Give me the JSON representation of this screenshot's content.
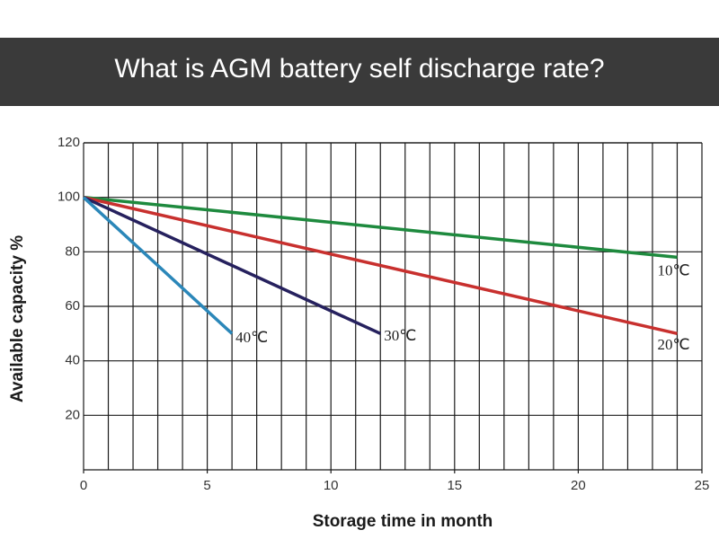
{
  "chart_data": {
    "type": "line",
    "title": "What is AGM battery self discharge rate?",
    "xlabel": "Storage time in month",
    "ylabel": "Available capacity %",
    "xlim": [
      0,
      25
    ],
    "xticks": [
      0,
      5,
      10,
      15,
      20,
      25
    ],
    "ylim": [
      0,
      120
    ],
    "yticks": [
      20,
      40,
      60,
      80,
      100,
      120
    ],
    "grid": true,
    "series": [
      {
        "name": "10℃",
        "color": "#1e8a3e",
        "x": [
          0,
          24
        ],
        "values": [
          100,
          78
        ]
      },
      {
        "name": "20℃",
        "color": "#c8302e",
        "x": [
          0,
          24
        ],
        "values": [
          100,
          50
        ]
      },
      {
        "name": "30℃",
        "color": "#26215e",
        "x": [
          0,
          12
        ],
        "values": [
          100,
          50
        ]
      },
      {
        "name": "40℃",
        "color": "#2b87b9",
        "x": [
          0,
          6
        ],
        "values": [
          100,
          50
        ]
      }
    ]
  }
}
